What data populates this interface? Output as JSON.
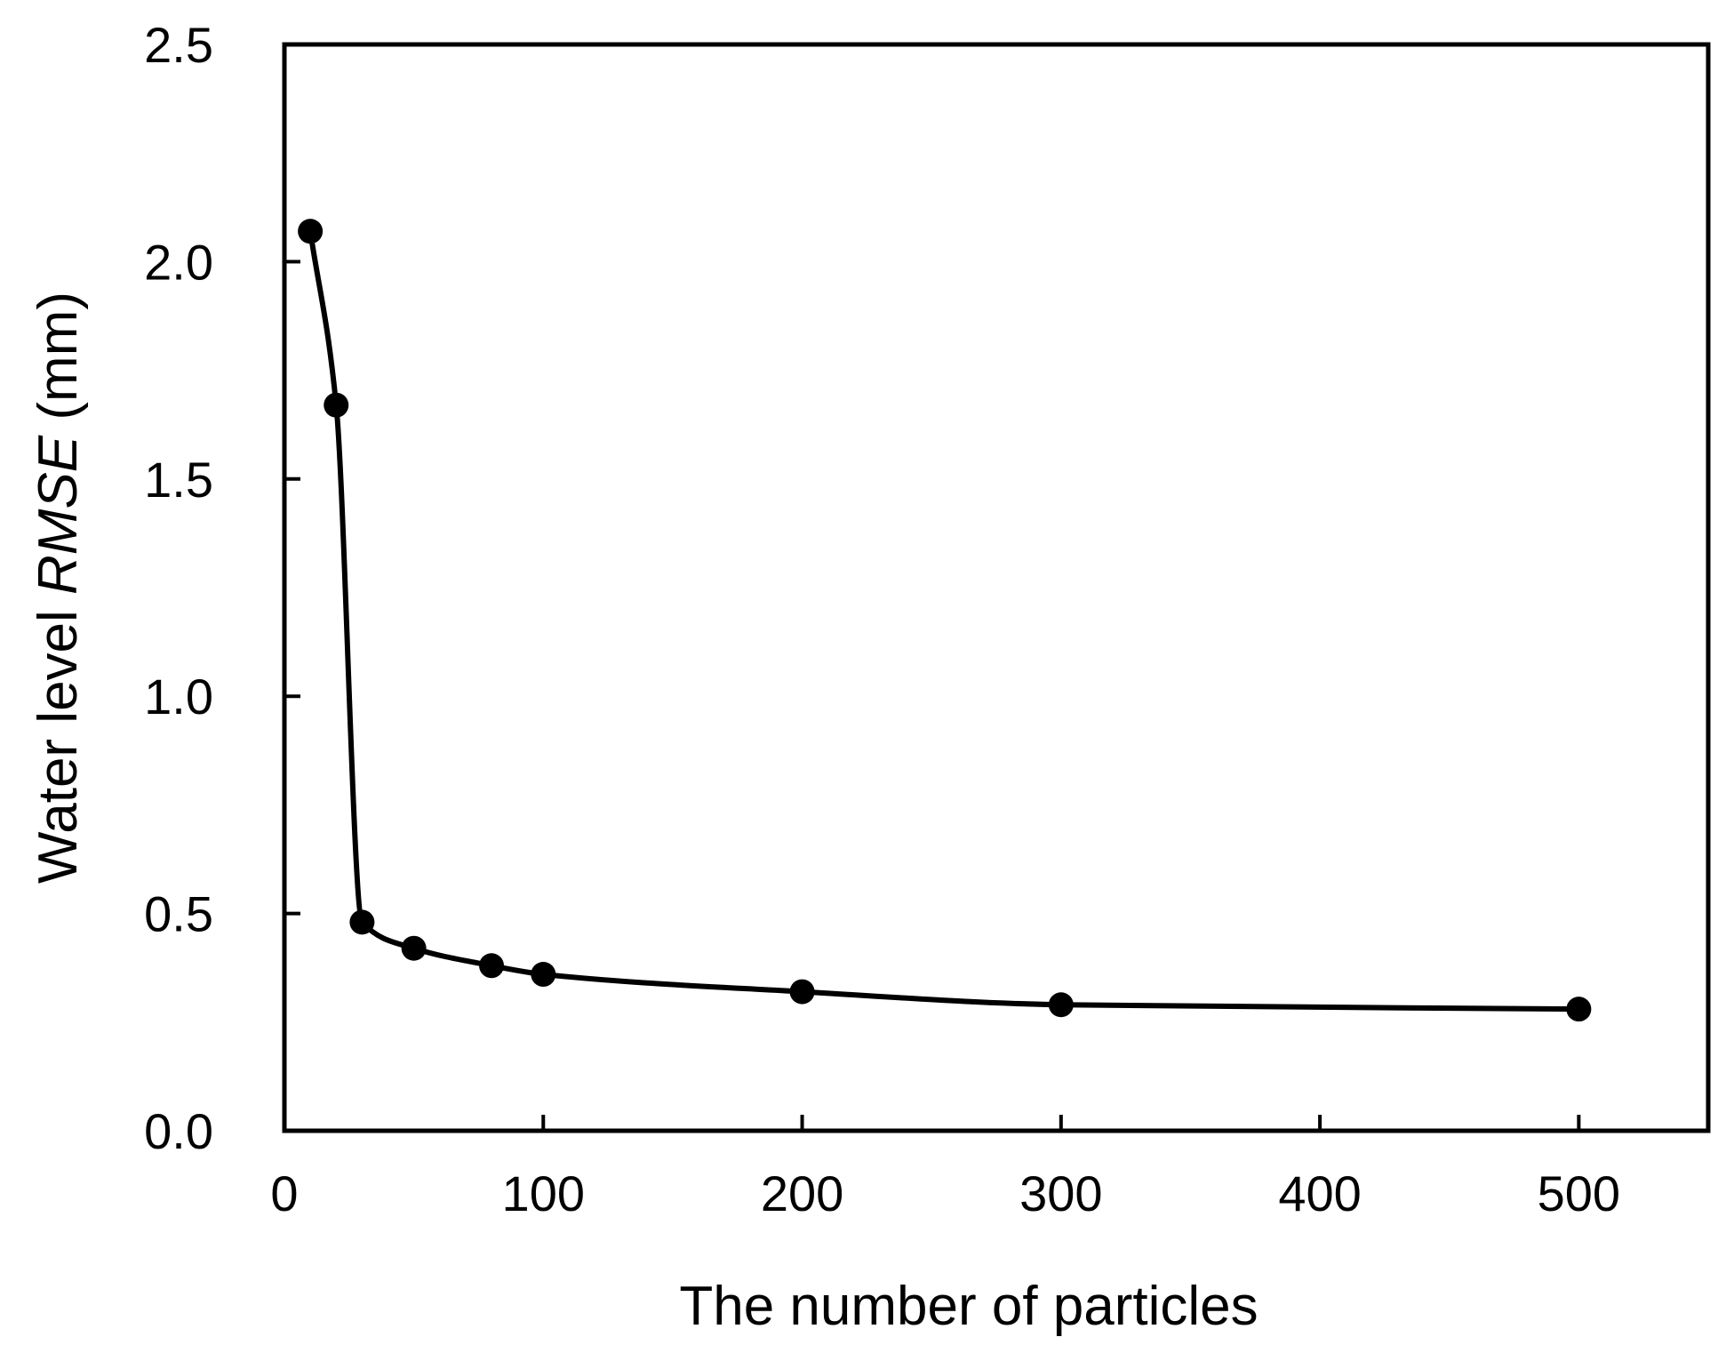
{
  "chart_data": {
    "type": "line",
    "xlabel": "The number of particles",
    "ylabel": {
      "prefix": "Water level ",
      "italic": "RMSE",
      "suffix": " (mm)"
    },
    "xlim": [
      0,
      550
    ],
    "ylim": [
      0,
      2.5
    ],
    "x_ticks": [
      0,
      100,
      200,
      300,
      400,
      500
    ],
    "x_tick_labels": [
      "0",
      "100",
      "200",
      "300",
      "400",
      "500"
    ],
    "y_ticks": [
      0,
      0.5,
      1.0,
      1.5,
      2.0,
      2.5
    ],
    "y_tick_labels": [
      "0.0",
      "0.5",
      "1.0",
      "1.5",
      "2.0",
      "2.5"
    ],
    "grid": false,
    "series": [
      {
        "x": [
          10,
          20,
          30,
          50,
          80,
          100,
          200,
          300,
          500
        ],
        "y": [
          2.07,
          1.67,
          0.48,
          0.42,
          0.38,
          0.36,
          0.32,
          0.29,
          0.28
        ],
        "marker": "circle",
        "color": "#000000"
      }
    ]
  }
}
